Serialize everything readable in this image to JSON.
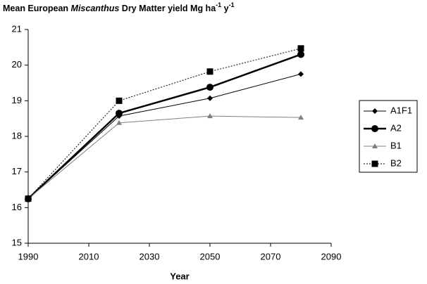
{
  "chart_data": {
    "type": "line",
    "title": [
      "Mean European ",
      "Miscanthus",
      " Dry Matter yield Mg ha",
      "-1",
      " y",
      "-1"
    ],
    "x_label": "Year",
    "x": [
      1990,
      2020,
      2050,
      2080
    ],
    "xlim": [
      1990,
      2090
    ],
    "xticks": [
      1990,
      2010,
      2030,
      2050,
      2070,
      2090
    ],
    "ylim": [
      15,
      21
    ],
    "yticks": [
      15,
      16,
      17,
      18,
      19,
      20,
      21
    ],
    "legend": "right",
    "series": [
      {
        "name": "A1F1",
        "color": "#000000",
        "line": "thin",
        "marker": "diamond",
        "values": [
          16.25,
          18.57,
          19.07,
          19.75
        ]
      },
      {
        "name": "A2",
        "color": "#000000",
        "line": "thick",
        "marker": "circle",
        "values": [
          16.25,
          18.65,
          19.38,
          20.3
        ]
      },
      {
        "name": "B1",
        "color": "#808080",
        "line": "thin",
        "marker": "triangle",
        "values": [
          16.25,
          18.38,
          18.57,
          18.53
        ]
      },
      {
        "name": "B2",
        "color": "#000000",
        "line": "dotted",
        "marker": "square",
        "values": [
          16.25,
          19.0,
          19.82,
          20.47
        ]
      }
    ]
  }
}
